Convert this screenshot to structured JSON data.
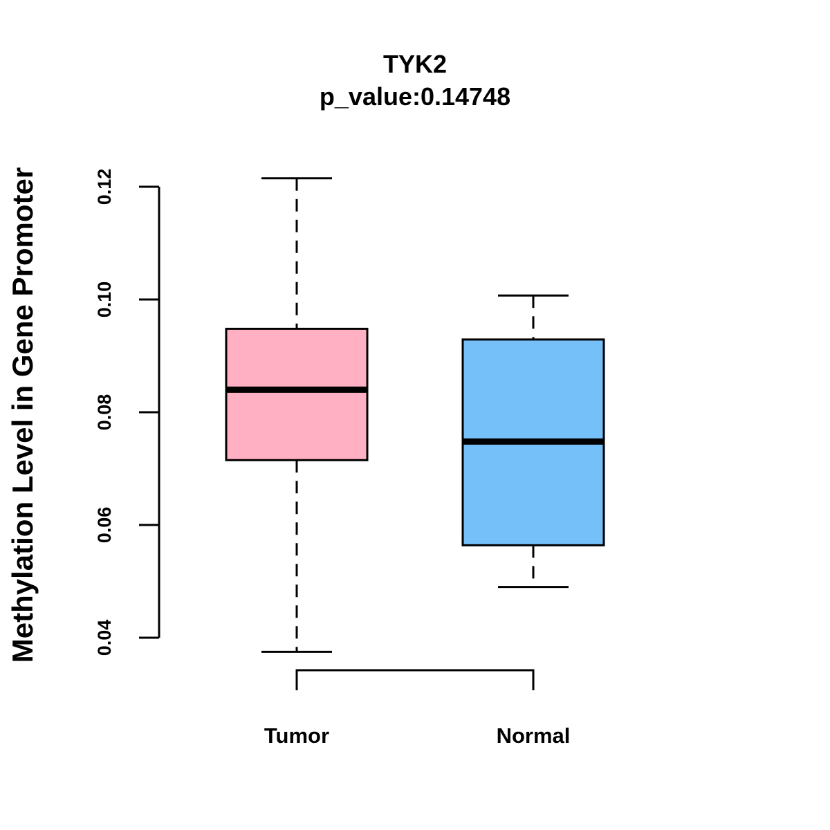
{
  "chart_data": {
    "type": "boxplot",
    "title": "TYK2",
    "subtitle": "p_value:0.14748",
    "xlabel": "",
    "ylabel": "Methylation Level in Gene Promoter",
    "ylim": [
      0.04,
      0.12
    ],
    "yticks": [
      0.04,
      0.06,
      0.08,
      0.1,
      0.12
    ],
    "ytick_labels": [
      "0.04",
      "0.06",
      "0.08",
      "0.10",
      "0.12"
    ],
    "categories": [
      "Tumor",
      "Normal"
    ],
    "boxes": [
      {
        "name": "Tumor",
        "whisker_low": 0.0375,
        "q1": 0.0715,
        "median": 0.084,
        "q3": 0.0948,
        "whisker_high": 0.1215,
        "color": "#FFB1C3"
      },
      {
        "name": "Normal",
        "whisker_low": 0.049,
        "q1": 0.0564,
        "median": 0.0748,
        "q3": 0.0929,
        "whisker_high": 0.1007,
        "color": "#75C0F8"
      }
    ],
    "comparison_bracket": [
      "Tumor",
      "Normal"
    ]
  }
}
